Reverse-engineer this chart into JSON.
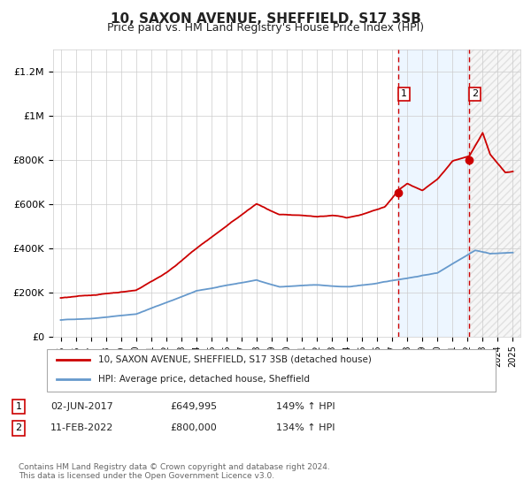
{
  "title": "10, SAXON AVENUE, SHEFFIELD, S17 3SB",
  "subtitle": "Price paid vs. HM Land Registry's House Price Index (HPI)",
  "title_fontsize": 11,
  "subtitle_fontsize": 9,
  "ylim": [
    0,
    1300000
  ],
  "xlim_start": 1994.5,
  "xlim_end": 2025.5,
  "background_color": "#ffffff",
  "sale1_date": 2017.42,
  "sale1_price": 649995,
  "sale2_date": 2022.12,
  "sale2_price": 800000,
  "legend_house": "10, SAXON AVENUE, SHEFFIELD, S17 3SB (detached house)",
  "legend_hpi": "HPI: Average price, detached house, Sheffield",
  "footer": "Contains HM Land Registry data © Crown copyright and database right 2024.\nThis data is licensed under the Open Government Licence v3.0.",
  "house_color": "#cc0000",
  "hpi_color": "#6699cc",
  "sale_vline_color": "#cc0000",
  "shade_color": "#ddeeff",
  "grid_color": "#cccccc"
}
